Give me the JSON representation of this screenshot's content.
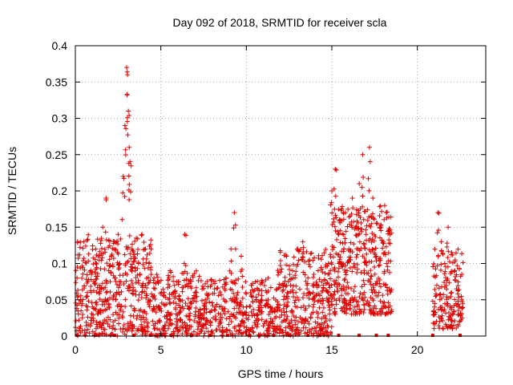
{
  "chart_data": {
    "type": "scatter",
    "title": "Day 092 of 2018, SRMTID for receiver scla",
    "xlabel": "GPS time / hours",
    "ylabel": "SRMTID / TECUs",
    "xlim": [
      0,
      24
    ],
    "ylim": [
      0,
      0.4
    ],
    "xticks": [
      0,
      5,
      10,
      15,
      20
    ],
    "yticks": [
      0,
      0.05,
      0.1,
      0.15,
      0.2,
      0.25,
      0.3,
      0.35,
      0.4
    ],
    "ytick_labels": [
      "0",
      "0.05",
      "0.1",
      "0.15",
      "0.2",
      "0.25",
      "0.3",
      "0.35",
      "0.4"
    ],
    "xtick_labels": [
      "0",
      "5",
      "10",
      "15",
      "20"
    ],
    "grid": true,
    "marker": "plus",
    "color": "#e00000",
    "series": [
      {
        "x": [
          0.1,
          0.3,
          0.5,
          0.7,
          0.9,
          1.0,
          1.2,
          1.4,
          1.6,
          1.8,
          1.9,
          2.1,
          2.3,
          2.5,
          2.6,
          2.8,
          2.9,
          3.0,
          3.05,
          3.1,
          3.15,
          3.2,
          3.3,
          3.5,
          3.7,
          3.9,
          4.1,
          4.3,
          4.6,
          4.9,
          5.2,
          5.5,
          5.8,
          6.1,
          6.4,
          6.7,
          7.0,
          7.3,
          7.6,
          7.9,
          8.2,
          8.5,
          8.8,
          9.1,
          9.3,
          9.5,
          9.7,
          10.0,
          10.3,
          10.6,
          10.9,
          11.2,
          11.5,
          11.8,
          12.1,
          12.4,
          12.7,
          13.0,
          13.3,
          13.6,
          13.9,
          14.2,
          14.5,
          14.8,
          15.0,
          15.2,
          15.4,
          15.6,
          15.8,
          16.0,
          16.2,
          16.4,
          16.6,
          16.8,
          17.0,
          17.2,
          17.4,
          17.6,
          17.8,
          18.0,
          18.2,
          18.4,
          21.0,
          21.2,
          21.4,
          21.6,
          21.8,
          22.0,
          22.2,
          22.4,
          22.6
        ],
        "y": [
          0.08,
          0.05,
          0.13,
          0.06,
          0.09,
          0.04,
          0.12,
          0.07,
          0.15,
          0.19,
          0.05,
          0.11,
          0.08,
          0.14,
          0.1,
          0.22,
          0.29,
          0.37,
          0.36,
          0.31,
          0.26,
          0.24,
          0.12,
          0.09,
          0.1,
          0.07,
          0.12,
          0.05,
          0.08,
          0.04,
          0.06,
          0.03,
          0.07,
          0.05,
          0.14,
          0.04,
          0.06,
          0.03,
          0.05,
          0.02,
          0.04,
          0.03,
          0.08,
          0.12,
          0.17,
          0.06,
          0.11,
          0.04,
          0.07,
          0.03,
          0.05,
          0.06,
          0.02,
          0.04,
          0.07,
          0.06,
          0.09,
          0.12,
          0.13,
          0.08,
          0.06,
          0.09,
          0.07,
          0.1,
          0.2,
          0.23,
          0.14,
          0.1,
          0.17,
          0.12,
          0.19,
          0.15,
          0.21,
          0.25,
          0.14,
          0.26,
          0.19,
          0.11,
          0.15,
          0.13,
          0.1,
          0.14,
          0.04,
          0.17,
          0.13,
          0.1,
          0.15,
          0.06,
          0.09,
          0.04,
          0.05
        ]
      }
    ],
    "noise_bands": [
      {
        "x0": 0.0,
        "x1": 4.5,
        "ymin": 0.0,
        "ymax": 0.14,
        "n": 420
      },
      {
        "x0": 4.5,
        "x1": 7.5,
        "ymin": 0.0,
        "ymax": 0.09,
        "n": 240
      },
      {
        "x0": 7.5,
        "x1": 11.8,
        "ymin": 0.0,
        "ymax": 0.08,
        "n": 300
      },
      {
        "x0": 11.8,
        "x1": 15.0,
        "ymin": 0.0,
        "ymax": 0.12,
        "n": 300
      },
      {
        "x0": 15.0,
        "x1": 18.5,
        "ymin": 0.03,
        "ymax": 0.18,
        "n": 380
      },
      {
        "x0": 20.9,
        "x1": 22.7,
        "ymin": 0.01,
        "ymax": 0.12,
        "n": 150
      }
    ],
    "baseline_x": [
      0.1,
      1.2,
      2.3,
      3.4,
      4.4,
      5.6,
      6.8,
      7.9,
      8.9,
      10.2,
      11.6,
      12.5,
      13.6,
      14.3,
      15.4,
      16.6,
      17.6,
      18.3,
      20.9,
      22.5
    ]
  }
}
